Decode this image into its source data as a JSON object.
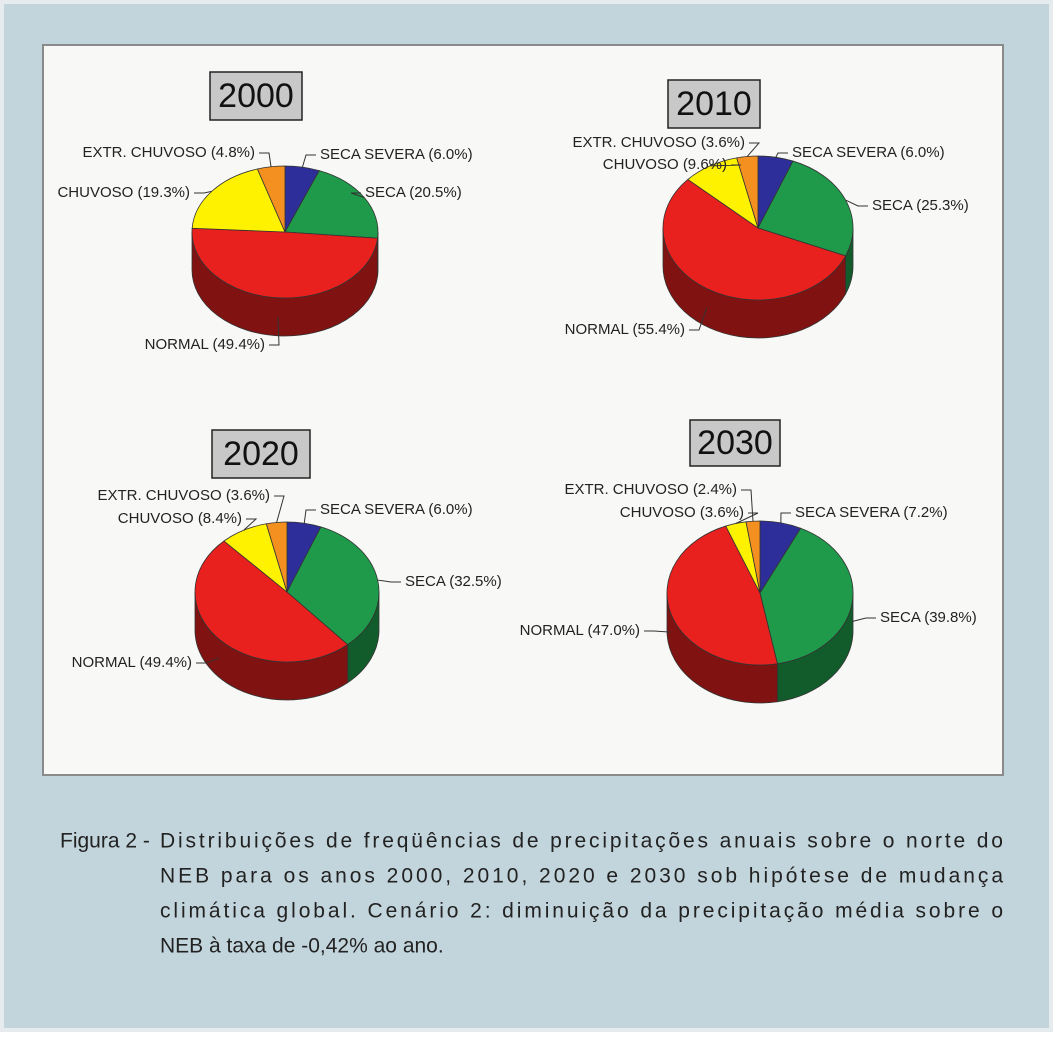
{
  "chart_data": [
    {
      "type": "pie",
      "title": "2000",
      "categories": [
        "SECA SEVERA",
        "SECA",
        "NORMAL",
        "CHUVOSO",
        "EXTR. CHUVOSO"
      ],
      "values": [
        6.0,
        20.5,
        49.4,
        19.3,
        4.8
      ],
      "value_labels": [
        "(6.0%)",
        "(20.5%)",
        "(49.4%)",
        "(19.3%)",
        "(4.8%)"
      ],
      "colors": [
        "#2e2e9a",
        "#1e9a4a",
        "#e8201e",
        "#fff200",
        "#f39020"
      ]
    },
    {
      "type": "pie",
      "title": "2010",
      "categories": [
        "SECA SEVERA",
        "SECA",
        "NORMAL",
        "CHUVOSO",
        "EXTR. CHUVOSO"
      ],
      "values": [
        6.0,
        25.3,
        55.4,
        9.6,
        3.6
      ],
      "value_labels": [
        "(6.0%)",
        "(25.3%)",
        "(55.4%)",
        "(9.6%)",
        "(3.6%)"
      ],
      "colors": [
        "#2e2e9a",
        "#1e9a4a",
        "#e8201e",
        "#fff200",
        "#f39020"
      ]
    },
    {
      "type": "pie",
      "title": "2020",
      "categories": [
        "SECA SEVERA",
        "SECA",
        "NORMAL",
        "CHUVOSO",
        "EXTR. CHUVOSO"
      ],
      "values": [
        6.0,
        32.5,
        49.4,
        8.4,
        3.6
      ],
      "value_labels": [
        "(6.0%)",
        "(32.5%)",
        "(49.4%)",
        "(8.4%)",
        "(3.6%)"
      ],
      "colors": [
        "#2e2e9a",
        "#1e9a4a",
        "#e8201e",
        "#fff200",
        "#f39020"
      ]
    },
    {
      "type": "pie",
      "title": "2030",
      "categories": [
        "SECA SEVERA",
        "SECA",
        "NORMAL",
        "CHUVOSO",
        "EXTR. CHUVOSO"
      ],
      "values": [
        7.2,
        39.8,
        47.0,
        3.6,
        2.4
      ],
      "value_labels": [
        "(7.2%)",
        "(39.8%)",
        "(47.0%)",
        "(3.6%)",
        "(2.4%)"
      ],
      "colors": [
        "#2e2e9a",
        "#1e9a4a",
        "#e8201e",
        "#fff200",
        "#f39020"
      ]
    }
  ],
  "caption": {
    "label": "Figura 2 -",
    "lines": [
      "Distribuições de freqüências de precipitações anuais sobre o norte do",
      "NEB para os anos 2000, 2010, 2020 e 2030 sob hipótese de mudança",
      "climática global. Cenário 2: diminuição da precipitação média sobre o",
      "NEB à taxa de -0,42% ao ano."
    ]
  }
}
